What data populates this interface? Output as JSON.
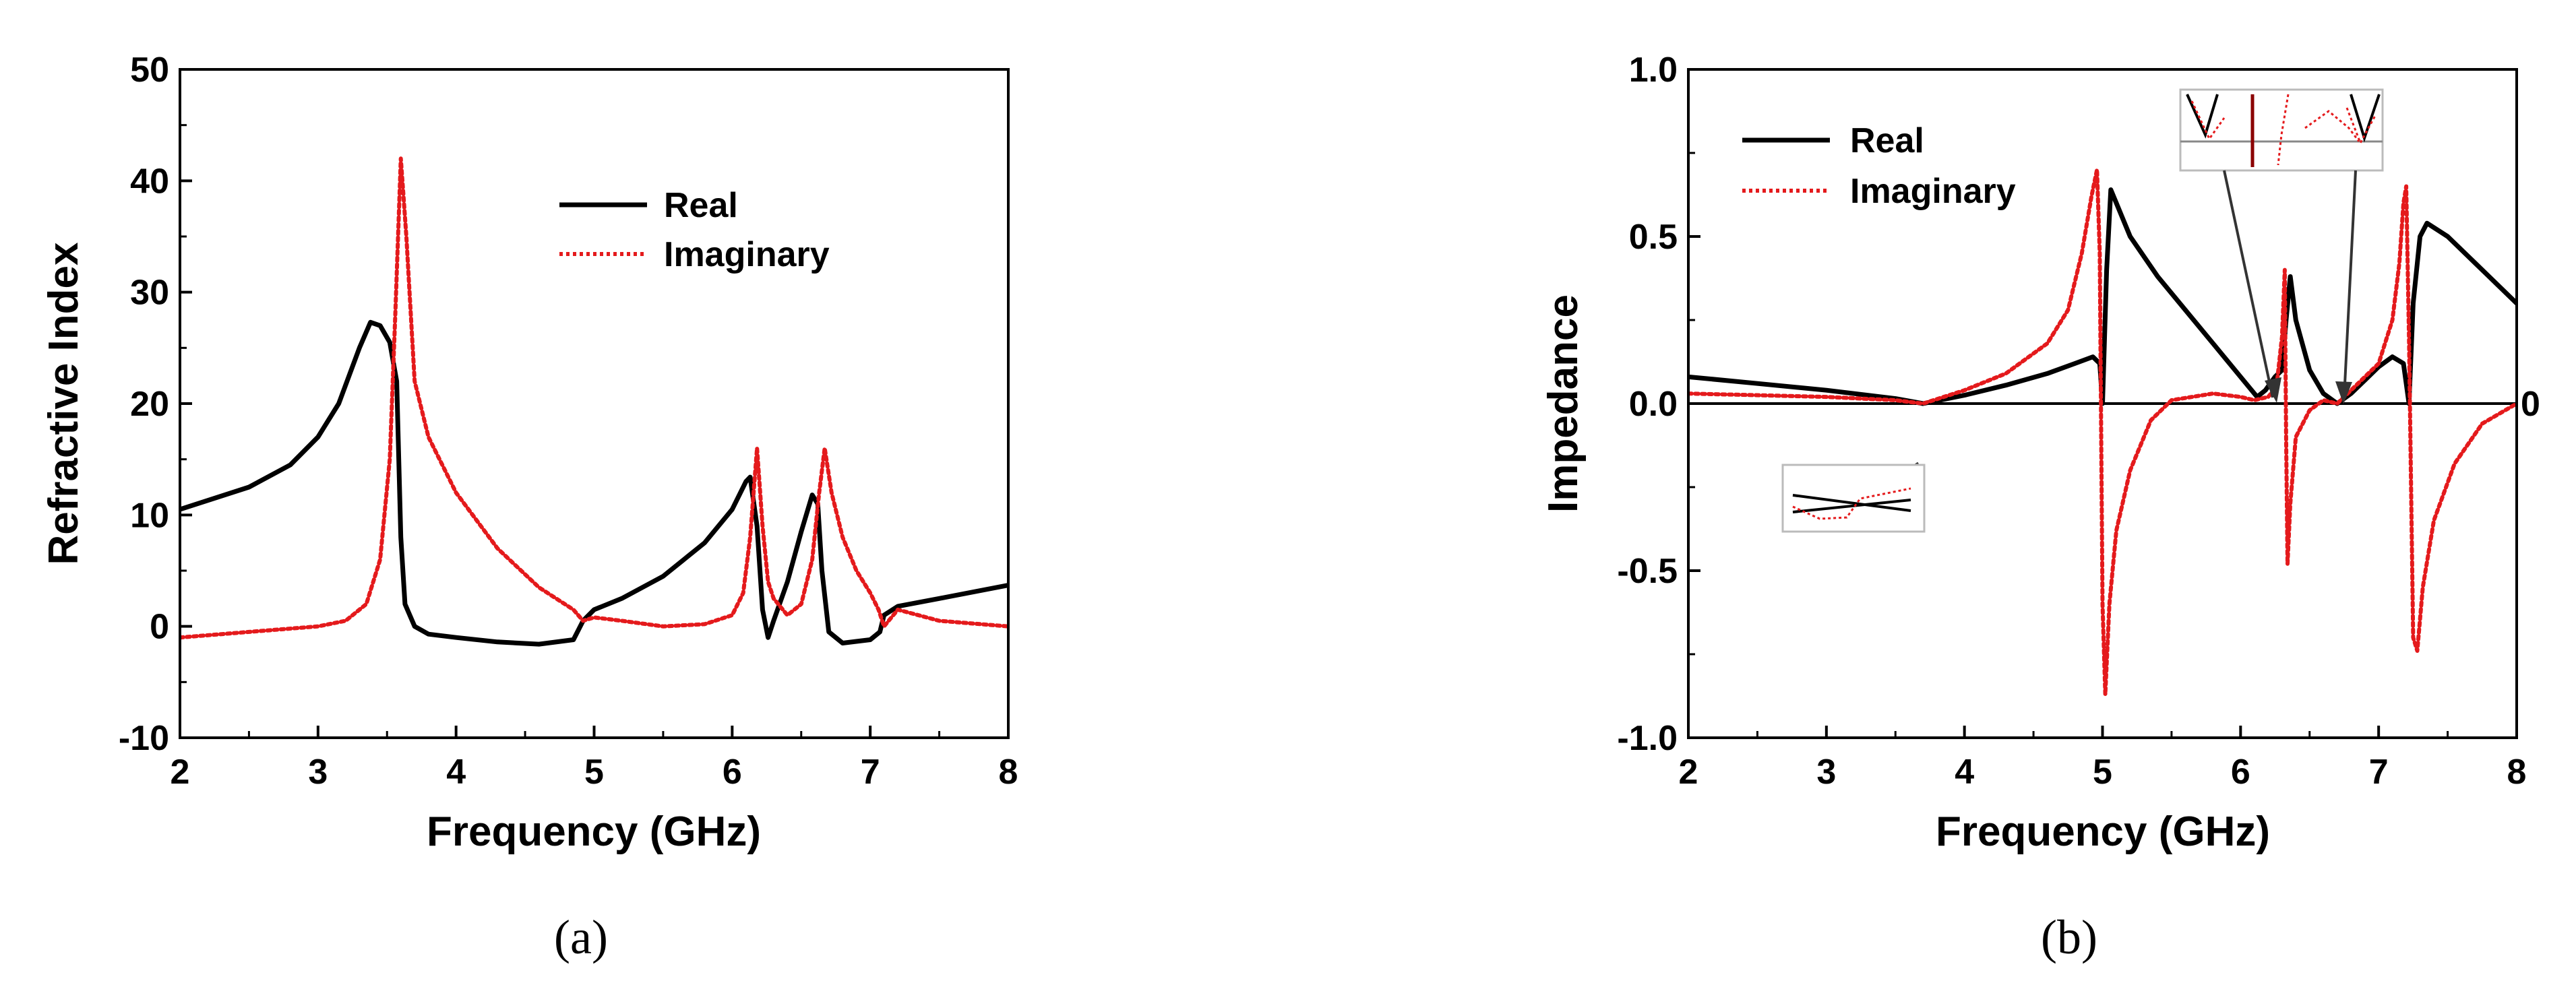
{
  "colors": {
    "real": "#000000",
    "imaginary": "#e41a1c"
  },
  "chart_data": [
    {
      "panel": "(a)",
      "type": "line",
      "xlabel": "Frequency (GHz)",
      "ylabel": "Refractive Index",
      "xlim": [
        2,
        8
      ],
      "ylim": [
        -10,
        50
      ],
      "xticks": [
        2,
        3,
        4,
        5,
        6,
        7,
        8
      ],
      "yticks": [
        -10,
        0,
        10,
        20,
        30,
        40,
        50
      ],
      "legend": [
        "Real",
        "Imaginary"
      ],
      "legend_position": "top-right",
      "grid": false,
      "series": [
        {
          "name": "Real",
          "style": "solid",
          "x": [
            2.0,
            2.5,
            2.8,
            3.0,
            3.15,
            3.3,
            3.38,
            3.45,
            3.52,
            3.57,
            3.6,
            3.63,
            3.7,
            3.8,
            4.0,
            4.3,
            4.6,
            4.85,
            4.92,
            5.0,
            5.2,
            5.5,
            5.8,
            6.0,
            6.1,
            6.13,
            6.18,
            6.22,
            6.26,
            6.3,
            6.4,
            6.5,
            6.58,
            6.62,
            6.65,
            6.7,
            6.8,
            7.0,
            7.07,
            7.1,
            7.2,
            7.5,
            8.0
          ],
          "values": [
            10.5,
            12.5,
            14.5,
            17.0,
            20.0,
            25.0,
            27.3,
            27.0,
            25.5,
            22.0,
            8.0,
            2.0,
            0.0,
            -0.7,
            -1.0,
            -1.4,
            -1.6,
            -1.2,
            0.5,
            1.5,
            2.5,
            4.5,
            7.5,
            10.5,
            13.0,
            13.4,
            9.0,
            1.5,
            -1.0,
            0.5,
            4.0,
            8.5,
            11.8,
            11.0,
            5.0,
            -0.5,
            -1.5,
            -1.2,
            -0.5,
            1.0,
            1.8,
            2.5,
            3.7
          ]
        },
        {
          "name": "Imaginary",
          "style": "dotted",
          "x": [
            2.0,
            2.5,
            3.0,
            3.2,
            3.35,
            3.45,
            3.52,
            3.56,
            3.6,
            3.64,
            3.7,
            3.8,
            4.0,
            4.3,
            4.6,
            4.85,
            4.92,
            5.0,
            5.2,
            5.5,
            5.8,
            6.0,
            6.08,
            6.13,
            6.18,
            6.22,
            6.26,
            6.3,
            6.4,
            6.5,
            6.58,
            6.63,
            6.67,
            6.72,
            6.8,
            6.9,
            7.0,
            7.06,
            7.1,
            7.2,
            7.5,
            8.0
          ],
          "values": [
            -1.0,
            -0.5,
            0.0,
            0.5,
            2.0,
            6.0,
            15.0,
            28.0,
            42.0,
            35.0,
            22.0,
            17.0,
            12.0,
            7.0,
            3.5,
            1.5,
            0.5,
            0.8,
            0.5,
            0.0,
            0.2,
            1.0,
            3.0,
            8.0,
            16.0,
            9.0,
            4.0,
            2.5,
            1.0,
            2.0,
            6.0,
            12.0,
            16.0,
            12.0,
            8.0,
            5.0,
            3.0,
            1.5,
            0.0,
            1.5,
            0.5,
            0.0
          ]
        }
      ]
    },
    {
      "panel": "(b)",
      "type": "line",
      "xlabel": "Frequency (GHz)",
      "ylabel": "Impedance",
      "xlim": [
        2,
        8
      ],
      "ylim": [
        -1.0,
        1.0
      ],
      "xticks": [
        2,
        3,
        4,
        5,
        6,
        7,
        8
      ],
      "yticks": [
        -1.0,
        -0.5,
        0.0,
        0.5,
        1.0
      ],
      "ytick_labels": [
        "-1.0",
        "-0.5",
        "0.0",
        "0.5",
        "1.0"
      ],
      "zero_line": true,
      "zero_line_label": "0",
      "legend": [
        "Real",
        "Imaginary"
      ],
      "legend_position": "top-left",
      "grid": false,
      "series": [
        {
          "name": "Real",
          "style": "solid",
          "x": [
            2.0,
            2.5,
            3.0,
            3.5,
            3.7,
            4.0,
            4.3,
            4.6,
            4.8,
            4.93,
            4.98,
            5.0,
            5.03,
            5.06,
            5.1,
            5.2,
            5.4,
            5.6,
            5.8,
            6.0,
            6.12,
            6.18,
            6.25,
            6.3,
            6.33,
            6.36,
            6.4,
            6.5,
            6.6,
            6.7,
            6.8,
            6.9,
            7.0,
            7.1,
            7.18,
            7.22,
            7.25,
            7.3,
            7.35,
            7.5,
            7.7,
            8.0
          ],
          "values": [
            0.08,
            0.06,
            0.04,
            0.015,
            0.0,
            0.025,
            0.055,
            0.09,
            0.12,
            0.14,
            0.12,
            0.0,
            0.4,
            0.64,
            0.6,
            0.5,
            0.38,
            0.28,
            0.18,
            0.08,
            0.02,
            0.04,
            0.08,
            0.1,
            0.25,
            0.38,
            0.25,
            0.1,
            0.03,
            0.0,
            0.03,
            0.07,
            0.11,
            0.14,
            0.12,
            0.0,
            0.3,
            0.5,
            0.54,
            0.5,
            0.42,
            0.3
          ]
        },
        {
          "name": "Imaginary",
          "style": "dotted",
          "x": [
            2.0,
            3.0,
            3.5,
            3.7,
            4.0,
            4.3,
            4.6,
            4.75,
            4.85,
            4.92,
            4.96,
            4.98,
            5.0,
            5.02,
            5.05,
            5.1,
            5.2,
            5.35,
            5.5,
            5.8,
            6.0,
            6.1,
            6.2,
            6.26,
            6.3,
            6.32,
            6.33,
            6.34,
            6.36,
            6.4,
            6.5,
            6.6,
            6.7,
            6.8,
            7.0,
            7.1,
            7.15,
            7.18,
            7.2,
            7.22,
            7.25,
            7.28,
            7.32,
            7.4,
            7.55,
            7.75,
            8.0
          ],
          "values": [
            0.03,
            0.02,
            0.01,
            0.0,
            0.04,
            0.09,
            0.18,
            0.28,
            0.45,
            0.62,
            0.7,
            0.45,
            -0.6,
            -0.87,
            -0.6,
            -0.38,
            -0.2,
            -0.05,
            0.01,
            0.03,
            0.02,
            0.01,
            0.02,
            0.05,
            0.2,
            0.4,
            -0.1,
            -0.48,
            -0.3,
            -0.1,
            -0.02,
            0.01,
            0.0,
            0.04,
            0.12,
            0.25,
            0.42,
            0.6,
            0.65,
            0.2,
            -0.7,
            -0.74,
            -0.55,
            -0.35,
            -0.18,
            -0.06,
            0.0
          ]
        }
      ]
    }
  ]
}
